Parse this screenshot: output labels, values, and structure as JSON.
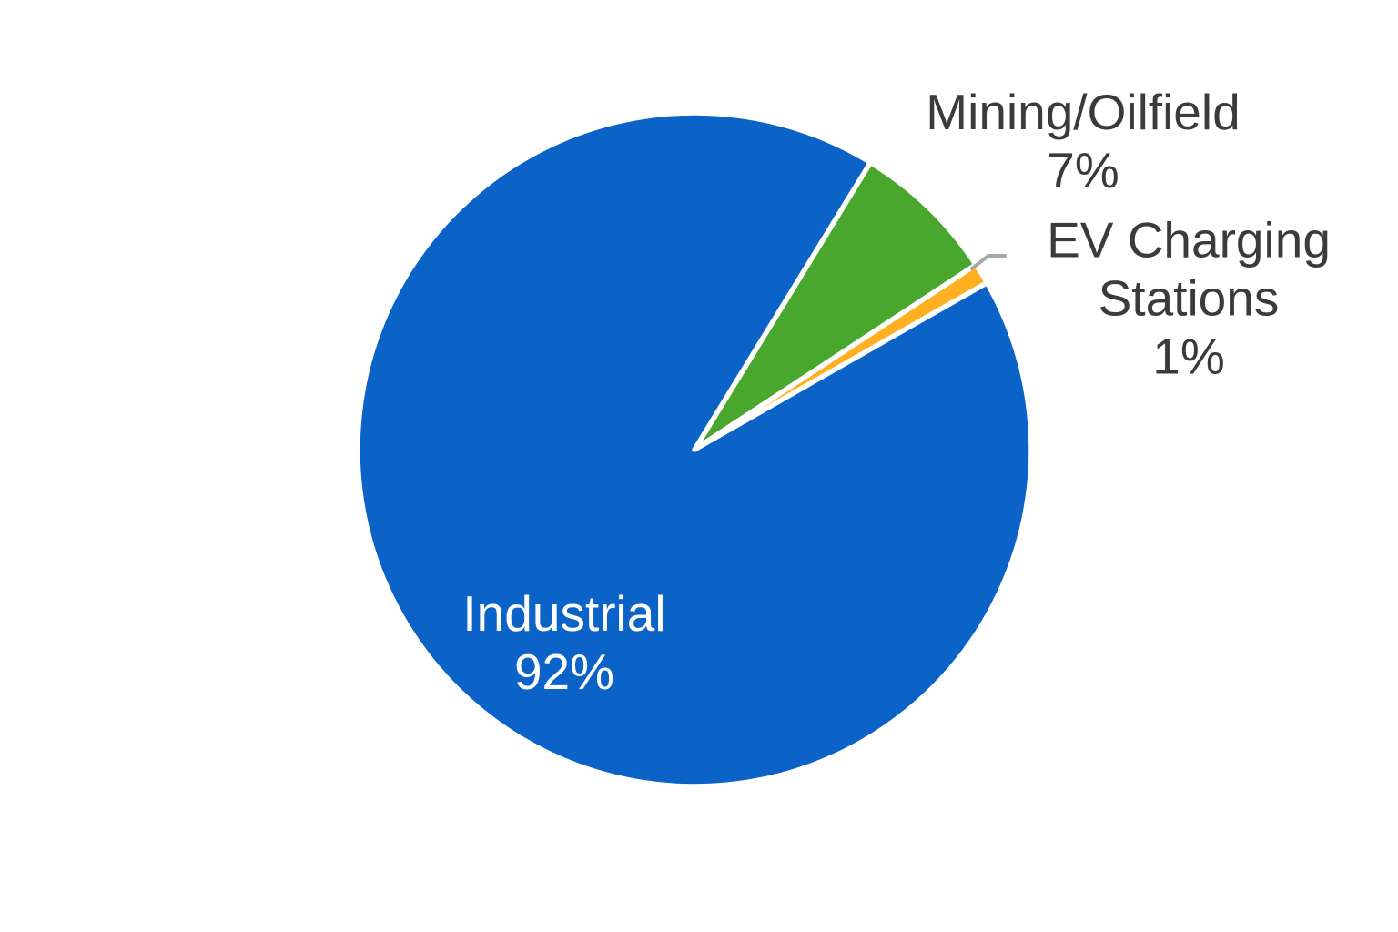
{
  "chart_data": {
    "type": "pie",
    "title": "",
    "slices": [
      {
        "label": "Mining/Oilfield",
        "value": 7,
        "pct_label": "7%",
        "color": "#48A72C"
      },
      {
        "label": "EV Charging Stations",
        "value": 1,
        "pct_label": "1%",
        "color": "#FFAF1F"
      },
      {
        "label": "Industrial",
        "value": 92,
        "pct_label": "92%",
        "color": "#0B63C8"
      }
    ],
    "layout": {
      "rotation_deg": 31.5,
      "gap_color": "#FFFFFF",
      "leader_line_color": "#A8A8A8",
      "outside_label_color": "#3B3B3B",
      "inside_label_color": "#FFFFFF",
      "legend": "none",
      "grid": "off"
    }
  }
}
